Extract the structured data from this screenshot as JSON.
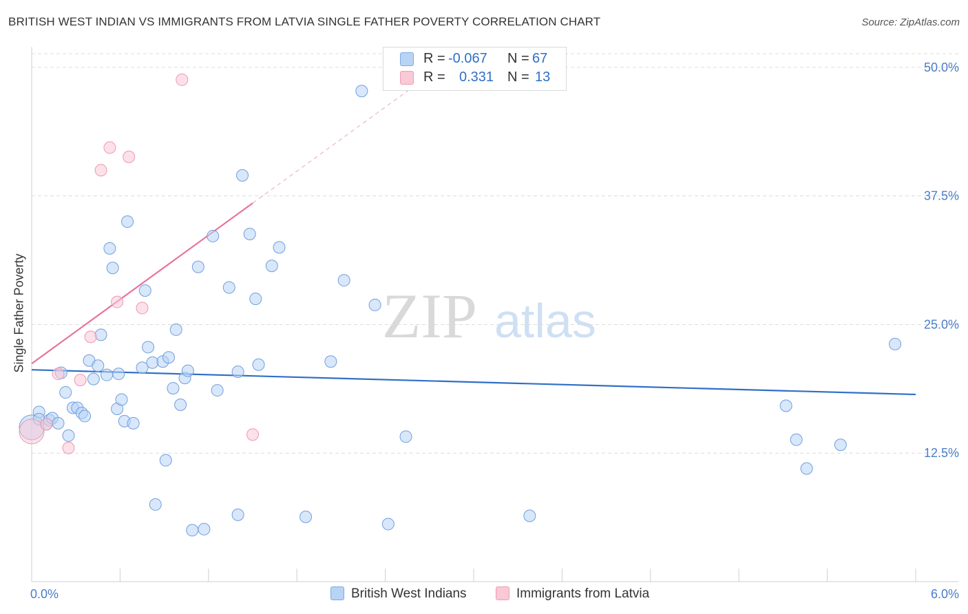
{
  "title": "BRITISH WEST INDIAN VS IMMIGRANTS FROM LATVIA SINGLE FATHER POVERTY CORRELATION CHART",
  "source": "Source: ZipAtlas.com",
  "watermark": {
    "zip": "ZIP",
    "atlas": "atlas"
  },
  "legend": {
    "r_label": "R =",
    "n_label": "N =",
    "series": [
      {
        "name": "British West Indians",
        "r": "-0.067",
        "n": "67",
        "fill": "#b8d4f5",
        "stroke": "#7aa9e6"
      },
      {
        "name": "Immigrants from Latvia",
        "r": "0.331",
        "n": "13",
        "fill": "#f9c9d6",
        "stroke": "#ef9bb3"
      }
    ]
  },
  "chart_data": {
    "type": "scatter",
    "title": "BRITISH WEST INDIAN VS IMMIGRANTS FROM LATVIA SINGLE FATHER POVERTY CORRELATION CHART",
    "xlabel": "",
    "ylabel": "Single Father Poverty",
    "xlim": [
      0,
      6
    ],
    "ylim": [
      0,
      52
    ],
    "x_tick_labels": [
      "0.0%",
      "6.0%"
    ],
    "y_ticks": [
      12.5,
      25.0,
      37.5,
      50.0
    ],
    "y_tick_labels": [
      "12.5%",
      "25.0%",
      "37.5%",
      "50.0%"
    ],
    "grid": true,
    "series": [
      {
        "name": "British West Indians",
        "color": "#2f6fc7",
        "trend": {
          "x": [
            0,
            6
          ],
          "y": [
            20.6,
            18.2
          ]
        },
        "points": [
          {
            "x": 0.0,
            "y": 15.0,
            "big": true
          },
          {
            "x": 0.05,
            "y": 16.5
          },
          {
            "x": 0.05,
            "y": 15.8
          },
          {
            "x": 0.1,
            "y": 15.3
          },
          {
            "x": 0.12,
            "y": 15.7
          },
          {
            "x": 0.14,
            "y": 15.9
          },
          {
            "x": 0.18,
            "y": 15.4
          },
          {
            "x": 0.2,
            "y": 20.3
          },
          {
            "x": 0.23,
            "y": 18.4
          },
          {
            "x": 0.25,
            "y": 14.2
          },
          {
            "x": 0.28,
            "y": 16.9
          },
          {
            "x": 0.31,
            "y": 16.9
          },
          {
            "x": 0.34,
            "y": 16.4
          },
          {
            "x": 0.36,
            "y": 16.1
          },
          {
            "x": 0.39,
            "y": 21.5
          },
          {
            "x": 0.42,
            "y": 19.7
          },
          {
            "x": 0.45,
            "y": 21.0
          },
          {
            "x": 0.47,
            "y": 24.0
          },
          {
            "x": 0.51,
            "y": 20.1
          },
          {
            "x": 0.53,
            "y": 32.4
          },
          {
            "x": 0.55,
            "y": 30.5
          },
          {
            "x": 0.58,
            "y": 16.8
          },
          {
            "x": 0.59,
            "y": 20.2
          },
          {
            "x": 0.61,
            "y": 17.7
          },
          {
            "x": 0.63,
            "y": 15.6
          },
          {
            "x": 0.65,
            "y": 35.0
          },
          {
            "x": 0.69,
            "y": 15.4
          },
          {
            "x": 0.75,
            "y": 20.8
          },
          {
            "x": 0.77,
            "y": 28.3
          },
          {
            "x": 0.79,
            "y": 22.8
          },
          {
            "x": 0.82,
            "y": 21.3
          },
          {
            "x": 0.84,
            "y": 7.5
          },
          {
            "x": 0.89,
            "y": 21.4
          },
          {
            "x": 0.91,
            "y": 11.8
          },
          {
            "x": 0.93,
            "y": 21.8
          },
          {
            "x": 0.96,
            "y": 18.8
          },
          {
            "x": 0.98,
            "y": 24.5
          },
          {
            "x": 1.01,
            "y": 17.2
          },
          {
            "x": 1.04,
            "y": 19.8
          },
          {
            "x": 1.06,
            "y": 20.5
          },
          {
            "x": 1.09,
            "y": 5.0
          },
          {
            "x": 1.13,
            "y": 30.6
          },
          {
            "x": 1.17,
            "y": 5.1
          },
          {
            "x": 1.23,
            "y": 33.6
          },
          {
            "x": 1.26,
            "y": 18.6
          },
          {
            "x": 1.34,
            "y": 28.6
          },
          {
            "x": 1.4,
            "y": 6.5
          },
          {
            "x": 1.4,
            "y": 20.4
          },
          {
            "x": 1.43,
            "y": 39.5
          },
          {
            "x": 1.48,
            "y": 33.8
          },
          {
            "x": 1.52,
            "y": 27.5
          },
          {
            "x": 1.54,
            "y": 21.1
          },
          {
            "x": 1.63,
            "y": 30.7
          },
          {
            "x": 1.68,
            "y": 32.5
          },
          {
            "x": 1.86,
            "y": 6.3
          },
          {
            "x": 2.03,
            "y": 21.4
          },
          {
            "x": 2.12,
            "y": 29.3
          },
          {
            "x": 2.24,
            "y": 47.7
          },
          {
            "x": 2.33,
            "y": 26.9
          },
          {
            "x": 2.42,
            "y": 5.6
          },
          {
            "x": 2.54,
            "y": 14.1
          },
          {
            "x": 3.38,
            "y": 6.4
          },
          {
            "x": 5.12,
            "y": 17.1
          },
          {
            "x": 5.19,
            "y": 13.8
          },
          {
            "x": 5.26,
            "y": 11.0
          },
          {
            "x": 5.49,
            "y": 13.3
          },
          {
            "x": 5.86,
            "y": 23.1
          }
        ]
      },
      {
        "name": "Immigrants from Latvia",
        "color": "#e8729a",
        "trend": {
          "x": [
            0,
            1.5
          ],
          "y": [
            21.2,
            36.8
          ],
          "dashed_to": {
            "x": 2.58,
            "y": 48.0
          }
        },
        "points": [
          {
            "x": 0.0,
            "y": 14.6,
            "big": true
          },
          {
            "x": 0.1,
            "y": 15.3
          },
          {
            "x": 0.18,
            "y": 20.2
          },
          {
            "x": 0.25,
            "y": 13.0
          },
          {
            "x": 0.33,
            "y": 19.6
          },
          {
            "x": 0.4,
            "y": 23.8
          },
          {
            "x": 0.47,
            "y": 40.0
          },
          {
            "x": 0.53,
            "y": 42.2
          },
          {
            "x": 0.58,
            "y": 27.2
          },
          {
            "x": 0.66,
            "y": 41.3
          },
          {
            "x": 0.75,
            "y": 26.6
          },
          {
            "x": 1.02,
            "y": 48.8
          },
          {
            "x": 1.5,
            "y": 14.3
          }
        ]
      }
    ]
  }
}
